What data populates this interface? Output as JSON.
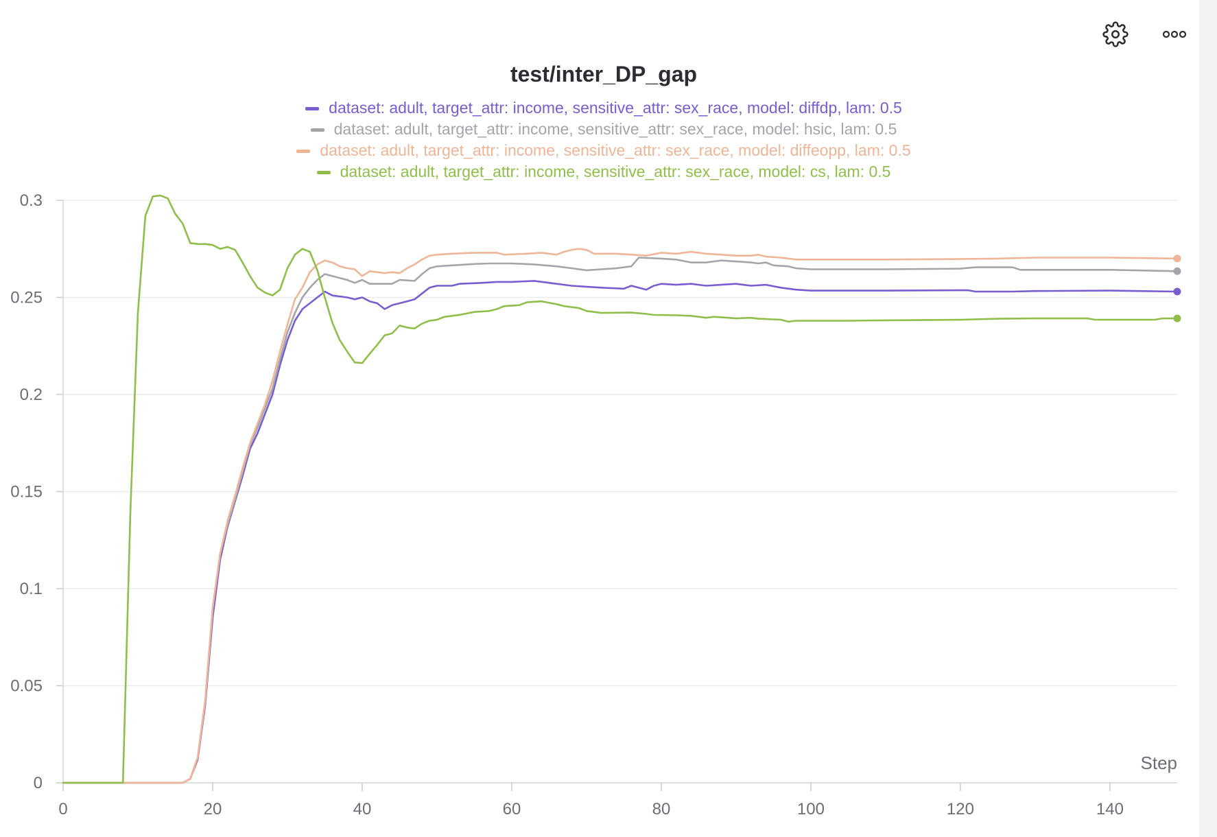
{
  "toolbar": {
    "settings_icon": "gear-icon",
    "more_icon": "more-horizontal-icon"
  },
  "chart_data": {
    "type": "line",
    "title": "test/inter_DP_gap",
    "xlabel": "Step",
    "ylabel": "",
    "xlim": [
      0,
      149
    ],
    "ylim": [
      0,
      0.3
    ],
    "x_ticks": [
      0,
      20,
      40,
      60,
      80,
      100,
      120,
      140
    ],
    "y_ticks": [
      0,
      0.05,
      0.1,
      0.15,
      0.2,
      0.25,
      0.3
    ],
    "x_tick_labels": [
      "0",
      "20",
      "40",
      "60",
      "80",
      "100",
      "120",
      "140"
    ],
    "y_tick_labels": [
      "0",
      "0.05",
      "0.1",
      "0.15",
      "0.2",
      "0.25",
      "0.3"
    ],
    "grid": true,
    "legend_position": "top-center",
    "series": [
      {
        "name": "dataset: adult, target_attr: income, sensitive_attr: sex_race, model: diffdp, lam: 0.5",
        "color": "#7a5cd1",
        "points": [
          [
            0,
            0
          ],
          [
            16,
            0
          ],
          [
            17,
            0.002
          ],
          [
            18,
            0.012
          ],
          [
            19,
            0.04
          ],
          [
            20,
            0.085
          ],
          [
            21,
            0.115
          ],
          [
            22,
            0.132
          ],
          [
            23,
            0.145
          ],
          [
            24,
            0.158
          ],
          [
            25,
            0.172
          ],
          [
            26,
            0.18
          ],
          [
            27,
            0.19
          ],
          [
            28,
            0.2
          ],
          [
            29,
            0.215
          ],
          [
            30,
            0.228
          ],
          [
            31,
            0.238
          ],
          [
            32,
            0.244
          ],
          [
            33,
            0.247
          ],
          [
            34,
            0.25
          ],
          [
            35,
            0.253
          ],
          [
            36,
            0.251
          ],
          [
            38,
            0.25
          ],
          [
            39,
            0.249
          ],
          [
            40,
            0.25
          ],
          [
            41,
            0.248
          ],
          [
            42,
            0.247
          ],
          [
            43,
            0.244
          ],
          [
            44,
            0.246
          ],
          [
            46,
            0.248
          ],
          [
            47,
            0.249
          ],
          [
            48,
            0.252
          ],
          [
            49,
            0.255
          ],
          [
            50,
            0.256
          ],
          [
            52,
            0.256
          ],
          [
            53,
            0.257
          ],
          [
            56,
            0.2575
          ],
          [
            58,
            0.258
          ],
          [
            60,
            0.258
          ],
          [
            63,
            0.2585
          ],
          [
            66,
            0.257
          ],
          [
            68,
            0.256
          ],
          [
            70,
            0.2555
          ],
          [
            72,
            0.255
          ],
          [
            75,
            0.2545
          ],
          [
            76,
            0.256
          ],
          [
            78,
            0.254
          ],
          [
            79,
            0.256
          ],
          [
            80,
            0.257
          ],
          [
            82,
            0.2565
          ],
          [
            84,
            0.257
          ],
          [
            86,
            0.256
          ],
          [
            88,
            0.2565
          ],
          [
            90,
            0.257
          ],
          [
            92,
            0.256
          ],
          [
            94,
            0.2565
          ],
          [
            96,
            0.255
          ],
          [
            98,
            0.254
          ],
          [
            100,
            0.2535
          ],
          [
            110,
            0.2535
          ],
          [
            121,
            0.2537
          ],
          [
            122,
            0.253
          ],
          [
            127,
            0.253
          ],
          [
            130,
            0.2533
          ],
          [
            140,
            0.2535
          ],
          [
            149,
            0.253
          ]
        ]
      },
      {
        "name": "dataset: adult, target_attr: income, sensitive_attr: sex_race, model: hsic, lam: 0.5",
        "color": "#a3a5aa",
        "points": [
          [
            0,
            0
          ],
          [
            16,
            0
          ],
          [
            17,
            0.002
          ],
          [
            18,
            0.013
          ],
          [
            19,
            0.042
          ],
          [
            20,
            0.09
          ],
          [
            21,
            0.118
          ],
          [
            22,
            0.133
          ],
          [
            23,
            0.146
          ],
          [
            24,
            0.16
          ],
          [
            25,
            0.174
          ],
          [
            26,
            0.183
          ],
          [
            27,
            0.193
          ],
          [
            28,
            0.203
          ],
          [
            29,
            0.218
          ],
          [
            30,
            0.232
          ],
          [
            31,
            0.242
          ],
          [
            32,
            0.25
          ],
          [
            33,
            0.255
          ],
          [
            34,
            0.259
          ],
          [
            35,
            0.262
          ],
          [
            36,
            0.261
          ],
          [
            38,
            0.259
          ],
          [
            39,
            0.2575
          ],
          [
            40,
            0.259
          ],
          [
            41,
            0.257
          ],
          [
            44,
            0.257
          ],
          [
            45,
            0.259
          ],
          [
            47,
            0.2585
          ],
          [
            48,
            0.262
          ],
          [
            49,
            0.265
          ],
          [
            50,
            0.266
          ],
          [
            52,
            0.2665
          ],
          [
            55,
            0.2672
          ],
          [
            57,
            0.2675
          ],
          [
            60,
            0.2675
          ],
          [
            63,
            0.267
          ],
          [
            66,
            0.266
          ],
          [
            68,
            0.265
          ],
          [
            70,
            0.264
          ],
          [
            72,
            0.2645
          ],
          [
            74,
            0.265
          ],
          [
            76,
            0.266
          ],
          [
            77,
            0.2705
          ],
          [
            80,
            0.27
          ],
          [
            82,
            0.2695
          ],
          [
            84,
            0.268
          ],
          [
            86,
            0.268
          ],
          [
            88,
            0.269
          ],
          [
            90,
            0.2685
          ],
          [
            92,
            0.268
          ],
          [
            93,
            0.2675
          ],
          [
            94,
            0.268
          ],
          [
            95,
            0.2665
          ],
          [
            97,
            0.266
          ],
          [
            98,
            0.265
          ],
          [
            100,
            0.2645
          ],
          [
            110,
            0.2645
          ],
          [
            120,
            0.2648
          ],
          [
            122,
            0.2655
          ],
          [
            127,
            0.2655
          ],
          [
            128,
            0.2642
          ],
          [
            140,
            0.2642
          ],
          [
            149,
            0.2635
          ]
        ]
      },
      {
        "name": "dataset: adult, target_attr: income, sensitive_attr: sex_race, model: diffeopp, lam: 0.5",
        "color": "#f0b496",
        "points": [
          [
            0,
            0
          ],
          [
            16,
            0
          ],
          [
            17,
            0.002
          ],
          [
            18,
            0.013
          ],
          [
            19,
            0.042
          ],
          [
            20,
            0.09
          ],
          [
            21,
            0.118
          ],
          [
            22,
            0.135
          ],
          [
            23,
            0.148
          ],
          [
            24,
            0.162
          ],
          [
            25,
            0.175
          ],
          [
            26,
            0.185
          ],
          [
            27,
            0.195
          ],
          [
            28,
            0.207
          ],
          [
            29,
            0.222
          ],
          [
            30,
            0.236
          ],
          [
            31,
            0.249
          ],
          [
            32,
            0.255
          ],
          [
            33,
            0.263
          ],
          [
            34,
            0.267
          ],
          [
            35,
            0.269
          ],
          [
            36,
            0.268
          ],
          [
            37,
            0.266
          ],
          [
            38,
            0.265
          ],
          [
            39,
            0.2645
          ],
          [
            40,
            0.261
          ],
          [
            41,
            0.2635
          ],
          [
            42,
            0.263
          ],
          [
            43,
            0.2625
          ],
          [
            44,
            0.263
          ],
          [
            45,
            0.2625
          ],
          [
            46,
            0.265
          ],
          [
            47,
            0.267
          ],
          [
            48,
            0.2695
          ],
          [
            49,
            0.2715
          ],
          [
            50,
            0.272
          ],
          [
            52,
            0.2725
          ],
          [
            55,
            0.273
          ],
          [
            58,
            0.273
          ],
          [
            59,
            0.272
          ],
          [
            62,
            0.2725
          ],
          [
            64,
            0.273
          ],
          [
            66,
            0.272
          ],
          [
            67,
            0.2735
          ],
          [
            68,
            0.2745
          ],
          [
            69,
            0.275
          ],
          [
            70,
            0.2745
          ],
          [
            71,
            0.2725
          ],
          [
            74,
            0.2725
          ],
          [
            76,
            0.272
          ],
          [
            78,
            0.2715
          ],
          [
            80,
            0.273
          ],
          [
            82,
            0.2725
          ],
          [
            84,
            0.2735
          ],
          [
            86,
            0.2725
          ],
          [
            88,
            0.272
          ],
          [
            90,
            0.2715
          ],
          [
            92,
            0.2715
          ],
          [
            93,
            0.272
          ],
          [
            94,
            0.271
          ],
          [
            96,
            0.2705
          ],
          [
            98,
            0.2695
          ],
          [
            100,
            0.2695
          ],
          [
            110,
            0.2695
          ],
          [
            120,
            0.2698
          ],
          [
            125,
            0.27
          ],
          [
            130,
            0.2705
          ],
          [
            140,
            0.2705
          ],
          [
            149,
            0.27
          ]
        ]
      },
      {
        "name": "dataset: adult, target_attr: income, sensitive_attr: sex_race, model: cs, lam: 0.5",
        "color": "#8fbf4a",
        "points": [
          [
            0,
            0
          ],
          [
            8,
            0
          ],
          [
            9,
            0.14
          ],
          [
            10,
            0.242
          ],
          [
            11,
            0.292
          ],
          [
            12,
            0.302
          ],
          [
            13,
            0.3025
          ],
          [
            14,
            0.301
          ],
          [
            15,
            0.293
          ],
          [
            16,
            0.288
          ],
          [
            17,
            0.278
          ],
          [
            18,
            0.2775
          ],
          [
            19,
            0.2775
          ],
          [
            20,
            0.277
          ],
          [
            21,
            0.275
          ],
          [
            22,
            0.276
          ],
          [
            23,
            0.2745
          ],
          [
            24,
            0.268
          ],
          [
            25,
            0.261
          ],
          [
            26,
            0.255
          ],
          [
            27,
            0.2525
          ],
          [
            28,
            0.251
          ],
          [
            29,
            0.254
          ],
          [
            30,
            0.265
          ],
          [
            31,
            0.272
          ],
          [
            32,
            0.275
          ],
          [
            33,
            0.2735
          ],
          [
            34,
            0.264
          ],
          [
            35,
            0.25
          ],
          [
            36,
            0.237
          ],
          [
            37,
            0.228
          ],
          [
            38,
            0.222
          ],
          [
            39,
            0.2165
          ],
          [
            40,
            0.2162
          ],
          [
            41,
            0.221
          ],
          [
            42,
            0.2255
          ],
          [
            43,
            0.2305
          ],
          [
            44,
            0.2315
          ],
          [
            45,
            0.2355
          ],
          [
            46,
            0.2345
          ],
          [
            47,
            0.234
          ],
          [
            48,
            0.2365
          ],
          [
            49,
            0.238
          ],
          [
            50,
            0.2385
          ],
          [
            51,
            0.24
          ],
          [
            53,
            0.241
          ],
          [
            55,
            0.2425
          ],
          [
            57,
            0.243
          ],
          [
            58,
            0.244
          ],
          [
            59,
            0.2455
          ],
          [
            61,
            0.246
          ],
          [
            62,
            0.2475
          ],
          [
            64,
            0.248
          ],
          [
            65,
            0.2472
          ],
          [
            66,
            0.2465
          ],
          [
            67,
            0.2455
          ],
          [
            69,
            0.2445
          ],
          [
            70,
            0.243
          ],
          [
            72,
            0.242
          ],
          [
            76,
            0.2422
          ],
          [
            78,
            0.2415
          ],
          [
            79,
            0.241
          ],
          [
            82,
            0.2408
          ],
          [
            84,
            0.2405
          ],
          [
            86,
            0.2395
          ],
          [
            87,
            0.24
          ],
          [
            89,
            0.2395
          ],
          [
            90,
            0.2392
          ],
          [
            92,
            0.2395
          ],
          [
            93,
            0.239
          ],
          [
            96,
            0.2385
          ],
          [
            97,
            0.2375
          ],
          [
            98,
            0.238
          ],
          [
            100,
            0.238
          ],
          [
            105,
            0.238
          ],
          [
            110,
            0.2382
          ],
          [
            120,
            0.2385
          ],
          [
            125,
            0.239
          ],
          [
            130,
            0.2392
          ],
          [
            137,
            0.2392
          ],
          [
            138,
            0.2385
          ],
          [
            146,
            0.2385
          ],
          [
            147,
            0.2392
          ],
          [
            149,
            0.2392
          ]
        ]
      }
    ]
  }
}
